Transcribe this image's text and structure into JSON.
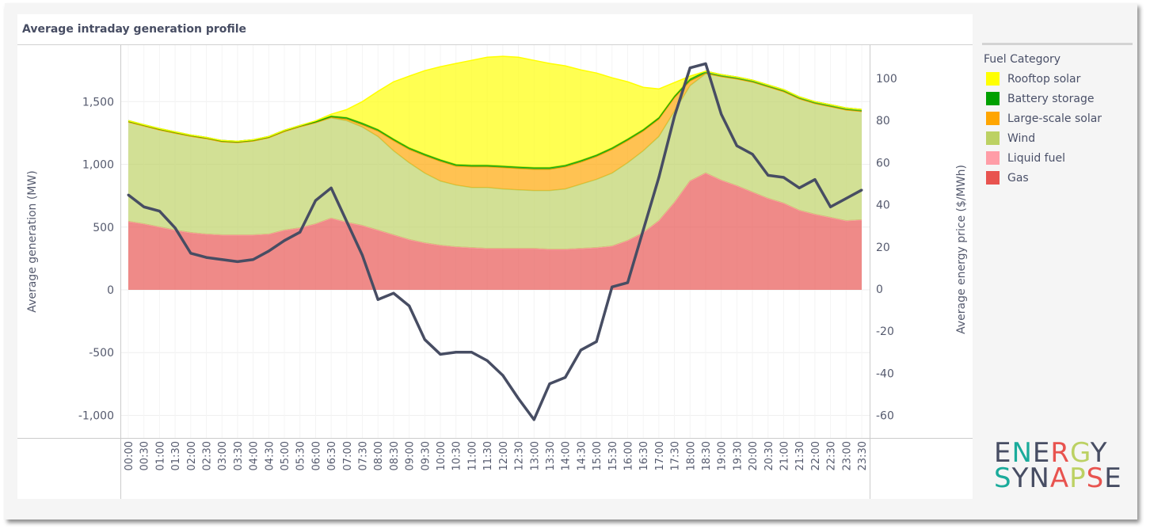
{
  "title": "Average intraday generation profile",
  "legend": {
    "title": "Fuel Category",
    "items": [
      {
        "name": "Rooftop solar",
        "color": "#ffff00"
      },
      {
        "name": "Battery storage",
        "color": "#00a000"
      },
      {
        "name": "Large-scale solar",
        "color": "#ffa500"
      },
      {
        "name": "Wind",
        "color": "#bcd163"
      },
      {
        "name": "Liquid fuel",
        "color": "#ff9da7"
      },
      {
        "name": "Gas",
        "color": "#e8534f"
      }
    ]
  },
  "logo": {
    "line1": "ENERGY",
    "line2": "SYNAPSE"
  },
  "chart_data": {
    "type": "area",
    "title": "Average intraday generation profile",
    "xlabel": "",
    "ylabel": "Average generation (MW)",
    "y2label": "Average energy price ($/MWh)",
    "ylim": [
      -1180,
      1950
    ],
    "y2lim": [
      -70.7,
      115.8
    ],
    "yticks": [
      -1000,
      -500,
      0,
      500,
      1000,
      1500
    ],
    "ytick_labels": [
      "-1,000",
      "-500",
      "0",
      "500",
      "1,000",
      "1,500"
    ],
    "y2ticks": [
      -60,
      -40,
      -20,
      0,
      20,
      40,
      60,
      80,
      100
    ],
    "grid": true,
    "stacked": true,
    "legend_position": "right",
    "x": [
      "00:00",
      "00:30",
      "01:00",
      "01:30",
      "02:00",
      "02:30",
      "03:00",
      "03:30",
      "04:00",
      "04:30",
      "05:00",
      "05:30",
      "06:00",
      "06:30",
      "07:00",
      "07:30",
      "08:00",
      "08:30",
      "09:00",
      "09:30",
      "10:00",
      "10:30",
      "11:00",
      "11:30",
      "12:00",
      "12:30",
      "13:00",
      "13:30",
      "14:00",
      "14:30",
      "15:00",
      "15:30",
      "16:00",
      "16:30",
      "17:00",
      "17:30",
      "18:00",
      "18:30",
      "19:00",
      "19:30",
      "20:00",
      "20:30",
      "21:00",
      "21:30",
      "22:00",
      "22:30",
      "23:00",
      "23:30"
    ],
    "series": [
      {
        "name": "Gas",
        "axis": "left",
        "values": [
          544,
          525,
          500,
          475,
          455,
          443,
          437,
          437,
          437,
          443,
          475,
          493,
          525,
          570,
          538,
          512,
          475,
          437,
          400,
          373,
          354,
          342,
          335,
          329,
          329,
          329,
          329,
          323,
          323,
          329,
          335,
          348,
          392,
          455,
          550,
          696,
          867,
          930,
          873,
          829,
          778,
          728,
          690,
          633,
          601,
          576,
          550,
          557
        ]
      },
      {
        "name": "Liquid fuel",
        "axis": "left",
        "values": [
          0,
          0,
          0,
          0,
          0,
          0,
          0,
          0,
          0,
          0,
          0,
          0,
          0,
          0,
          0,
          0,
          0,
          0,
          0,
          0,
          0,
          0,
          0,
          0,
          0,
          0,
          0,
          0,
          0,
          0,
          0,
          0,
          0,
          0,
          0,
          0,
          0,
          0,
          0,
          0,
          0,
          0,
          0,
          0,
          0,
          0,
          0,
          0
        ]
      },
      {
        "name": "Wind",
        "axis": "left",
        "values": [
          794,
          781,
          775,
          774,
          769,
          762,
          743,
          737,
          749,
          769,
          787,
          807,
          807,
          800,
          810,
          785,
          747,
          671,
          613,
          557,
          513,
          493,
          481,
          487,
          475,
          468,
          462,
          468,
          481,
          513,
          545,
          582,
          621,
          653,
          672,
          728,
          760,
          792,
          827,
          852,
          878,
          890,
          890,
          890,
          884,
          884,
          884,
          865
        ]
      },
      {
        "name": "Large-scale solar",
        "axis": "left",
        "values": [
          0,
          0,
          0,
          0,
          0,
          0,
          0,
          0,
          0,
          0,
          0,
          0,
          0,
          5,
          13,
          19,
          44,
          82,
          107,
          140,
          158,
          152,
          165,
          165,
          171,
          171,
          171,
          171,
          177,
          177,
          183,
          190,
          177,
          158,
          139,
          108,
          38,
          5,
          0,
          0,
          0,
          0,
          0,
          0,
          0,
          0,
          0,
          0
        ]
      },
      {
        "name": "Battery storage",
        "axis": "left",
        "values": [
          10,
          10,
          10,
          10,
          10,
          10,
          10,
          10,
          10,
          10,
          10,
          10,
          10,
          10,
          12,
          13,
          12,
          12,
          12,
          12,
          12,
          12,
          12,
          12,
          12,
          12,
          12,
          12,
          12,
          12,
          12,
          12,
          12,
          12,
          12,
          12,
          15,
          15,
          15,
          15,
          15,
          15,
          15,
          15,
          15,
          15,
          15,
          15
        ]
      },
      {
        "name": "Rooftop solar",
        "axis": "left",
        "values": [
          0,
          0,
          0,
          0,
          0,
          0,
          0,
          0,
          0,
          0,
          0,
          0,
          5,
          15,
          64,
          171,
          304,
          456,
          571,
          665,
          741,
          805,
          836,
          861,
          874,
          874,
          855,
          830,
          792,
          722,
          653,
          558,
          456,
          336,
          228,
          108,
          23,
          0,
          0,
          0,
          0,
          0,
          0,
          0,
          0,
          0,
          0,
          0
        ]
      },
      {
        "name": "Average energy price ($/MWh)",
        "axis": "right",
        "type": "line",
        "color": "#474d63",
        "values": [
          44.7,
          39,
          37,
          29,
          17,
          15,
          14,
          13,
          14,
          18,
          23,
          27,
          42,
          48,
          32,
          16,
          -5,
          -2,
          -8,
          -24,
          -31,
          -30,
          -30,
          -34,
          -41,
          -52,
          -62,
          -45,
          -42,
          -29,
          -25,
          1,
          3,
          28,
          53,
          82,
          105,
          107,
          83,
          68,
          64,
          54,
          53,
          48,
          52,
          39,
          43,
          47
        ]
      }
    ]
  }
}
